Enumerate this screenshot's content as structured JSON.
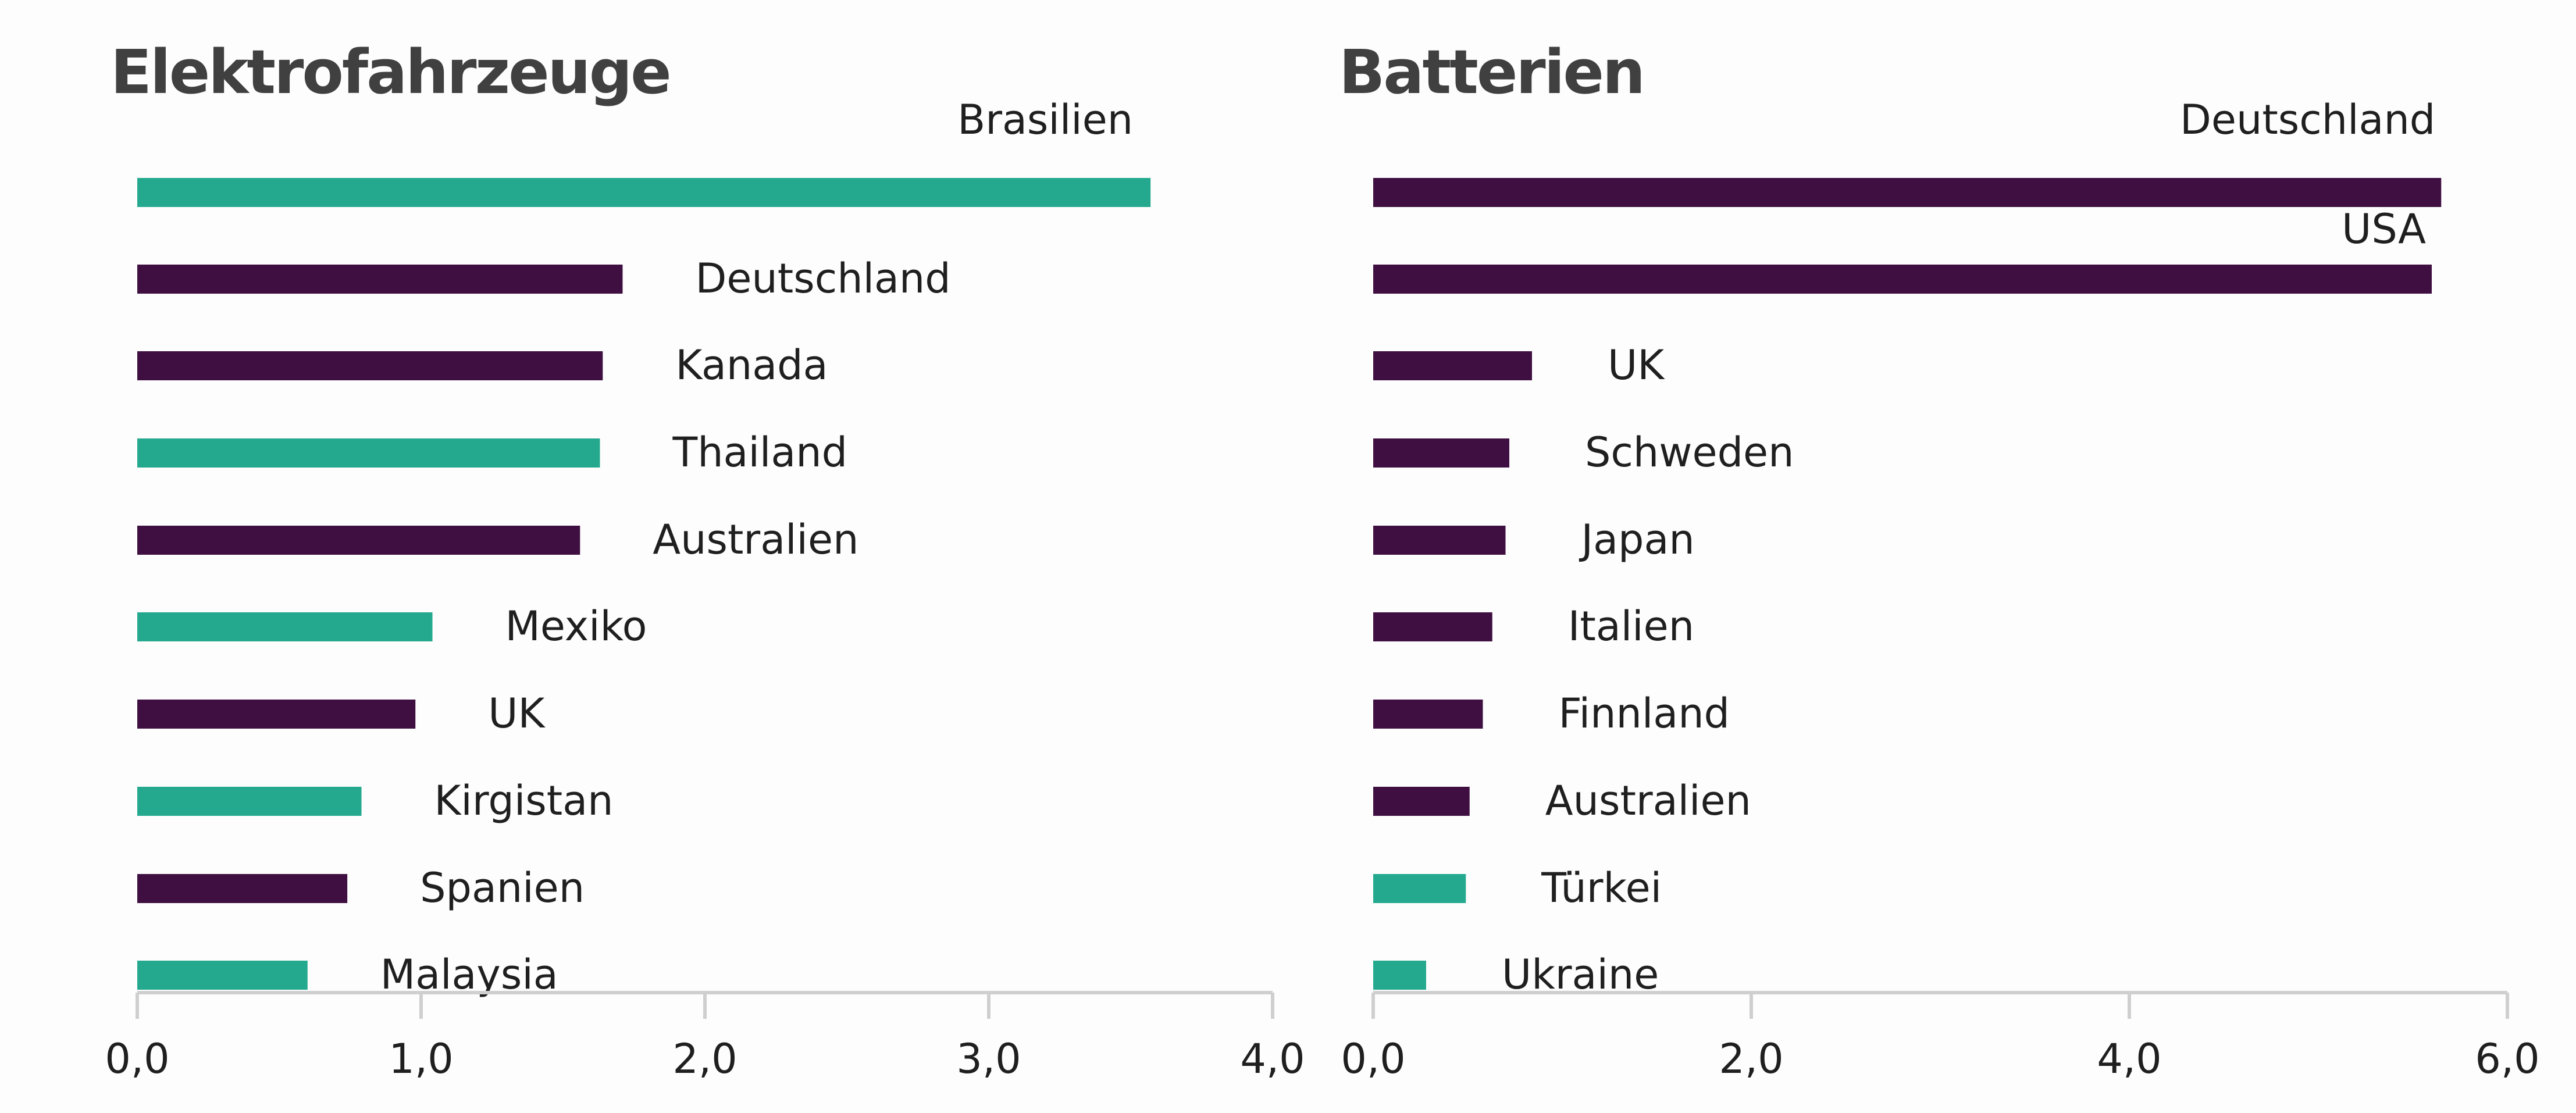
{
  "colors": {
    "purple": "#3f0f42",
    "teal": "#24a98e",
    "axis": "#cfcfcf",
    "title": "#404040",
    "text": "#1f1f1f"
  },
  "chart_data": [
    {
      "type": "bar",
      "orientation": "horizontal",
      "title": "Elektrofahrzeuge",
      "xlim": [
        0,
        4.0
      ],
      "xticks": [
        "0,0",
        "1,0",
        "2,0",
        "3,0",
        "4,0"
      ],
      "grid": false,
      "categories": [
        "Brasilien",
        "Deutschland",
        "Kanada",
        "Thailand",
        "Australien",
        "Mexiko",
        "UK",
        "Kirgistan",
        "Spanien",
        "Malaysia"
      ],
      "values": [
        3.57,
        1.71,
        1.64,
        1.63,
        1.56,
        1.04,
        0.98,
        0.79,
        0.74,
        0.6
      ],
      "bar_colors": [
        "teal",
        "purple",
        "purple",
        "teal",
        "purple",
        "teal",
        "purple",
        "teal",
        "purple",
        "teal"
      ]
    },
    {
      "type": "bar",
      "orientation": "horizontal",
      "title": "Batterien",
      "xlim": [
        0,
        6.0
      ],
      "xticks": [
        "0,0",
        "2,0",
        "4,0",
        "6,0"
      ],
      "grid": false,
      "categories": [
        "Deutschland",
        "USA",
        "UK",
        "Schweden",
        "Japan",
        "Italien",
        "Finnland",
        "Australien",
        "Türkei",
        "Ukraine"
      ],
      "values": [
        5.65,
        5.6,
        0.84,
        0.72,
        0.7,
        0.63,
        0.58,
        0.51,
        0.49,
        0.28
      ],
      "bar_colors": [
        "purple",
        "purple",
        "purple",
        "purple",
        "purple",
        "purple",
        "purple",
        "purple",
        "teal",
        "teal"
      ]
    }
  ]
}
